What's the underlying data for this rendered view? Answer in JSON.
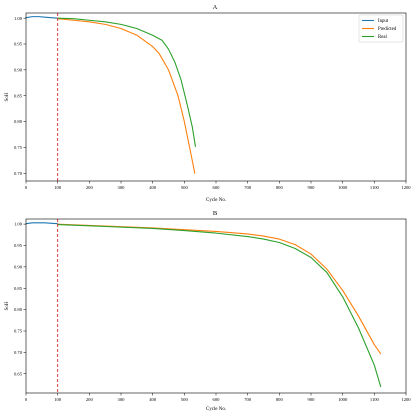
{
  "chart_data": [
    {
      "title": "A",
      "type": "line",
      "xlabel": "Cycle No.",
      "ylabel": "SoH",
      "xlim": [
        0,
        1200
      ],
      "ylim": [
        0.685,
        1.01
      ],
      "xticks": [
        0,
        100,
        200,
        300,
        400,
        500,
        600,
        700,
        800,
        900,
        1000,
        1100,
        1200
      ],
      "yticks": [
        0.7,
        0.75,
        0.8,
        0.85,
        0.9,
        0.95,
        1.0
      ],
      "vline": {
        "x": 100,
        "color": "#d62728",
        "style": "dashed"
      },
      "legend": {
        "position": "top-right",
        "entries": [
          "Input",
          "Predicted",
          "Real"
        ]
      },
      "series": [
        {
          "name": "Input",
          "color": "#1f77b4",
          "x": [
            0,
            20,
            40,
            60,
            80,
            100
          ],
          "y": [
            1.001,
            1.003,
            1.003,
            1.002,
            1.001,
            1.0
          ]
        },
        {
          "name": "Predicted",
          "color": "#ff7f0e",
          "x": [
            100,
            150,
            200,
            250,
            300,
            350,
            400,
            420,
            450,
            480,
            500,
            520,
            533
          ],
          "y": [
            0.999,
            0.996,
            0.993,
            0.988,
            0.98,
            0.967,
            0.945,
            0.932,
            0.9,
            0.85,
            0.8,
            0.74,
            0.7
          ]
        },
        {
          "name": "Real",
          "color": "#2ca02c",
          "x": [
            100,
            150,
            200,
            250,
            300,
            350,
            400,
            430,
            450,
            470,
            490,
            510,
            525,
            535
          ],
          "y": [
            1.0,
            0.999,
            0.996,
            0.993,
            0.988,
            0.98,
            0.967,
            0.957,
            0.94,
            0.915,
            0.88,
            0.83,
            0.79,
            0.752
          ]
        }
      ]
    },
    {
      "title": "B",
      "type": "line",
      "xlabel": "Cycle No.",
      "ylabel": "SoH",
      "xlim": [
        0,
        1200
      ],
      "ylim": [
        0.605,
        1.012
      ],
      "xticks": [
        0,
        100,
        200,
        300,
        400,
        500,
        600,
        700,
        800,
        900,
        1000,
        1100,
        1200
      ],
      "yticks": [
        0.65,
        0.7,
        0.75,
        0.8,
        0.85,
        0.9,
        0.95,
        1.0
      ],
      "vline": {
        "x": 100,
        "color": "#d62728",
        "style": "dashed"
      },
      "series": [
        {
          "name": "Input",
          "color": "#1f77b4",
          "x": [
            0,
            20,
            40,
            60,
            80,
            100
          ],
          "y": [
            1.001,
            1.003,
            1.003,
            1.003,
            1.002,
            1.001
          ]
        },
        {
          "name": "Predicted",
          "color": "#ff7f0e",
          "x": [
            100,
            200,
            300,
            400,
            500,
            600,
            700,
            750,
            800,
            850,
            900,
            950,
            1000,
            1050,
            1100,
            1120
          ],
          "y": [
            1.0,
            0.997,
            0.994,
            0.991,
            0.987,
            0.983,
            0.977,
            0.972,
            0.965,
            0.952,
            0.93,
            0.895,
            0.845,
            0.785,
            0.718,
            0.697
          ]
        },
        {
          "name": "Real",
          "color": "#2ca02c",
          "x": [
            100,
            200,
            300,
            400,
            500,
            600,
            700,
            750,
            800,
            850,
            900,
            950,
            1000,
            1050,
            1100,
            1120
          ],
          "y": [
            0.999,
            0.996,
            0.993,
            0.99,
            0.985,
            0.979,
            0.971,
            0.965,
            0.957,
            0.943,
            0.922,
            0.887,
            0.83,
            0.757,
            0.67,
            0.62
          ]
        }
      ]
    }
  ]
}
